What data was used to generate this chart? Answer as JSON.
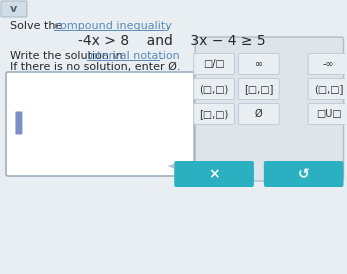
{
  "bg_color": "#e8eef2",
  "equation": "-4x > 8    and    3x − 4 ≥ 5",
  "subtitle2": "If there is no solution, enter Ø.",
  "input_box_color": "#ffffff",
  "input_box_border": "#a0b0c0",
  "input_cursor_color": "#7b8fc7",
  "panel_bg": "#dde4ea",
  "panel_border": "#b0bec8",
  "button_bg": "#e8eef2",
  "button_border": "#c0cdd8",
  "teal_button": "#2ab0c0",
  "teal_text": "#ffffff",
  "text_color": "#2a2a2a",
  "link_color": "#5b8ab8",
  "symbols": [
    [
      "□/□",
      "∞",
      "-∞"
    ],
    [
      "(□,□)",
      "[□,□]",
      "(□,□]"
    ],
    [
      "[□,□)",
      "Ø",
      "□U□"
    ]
  ],
  "btn1_label": "×",
  "btn2_label": "↺"
}
